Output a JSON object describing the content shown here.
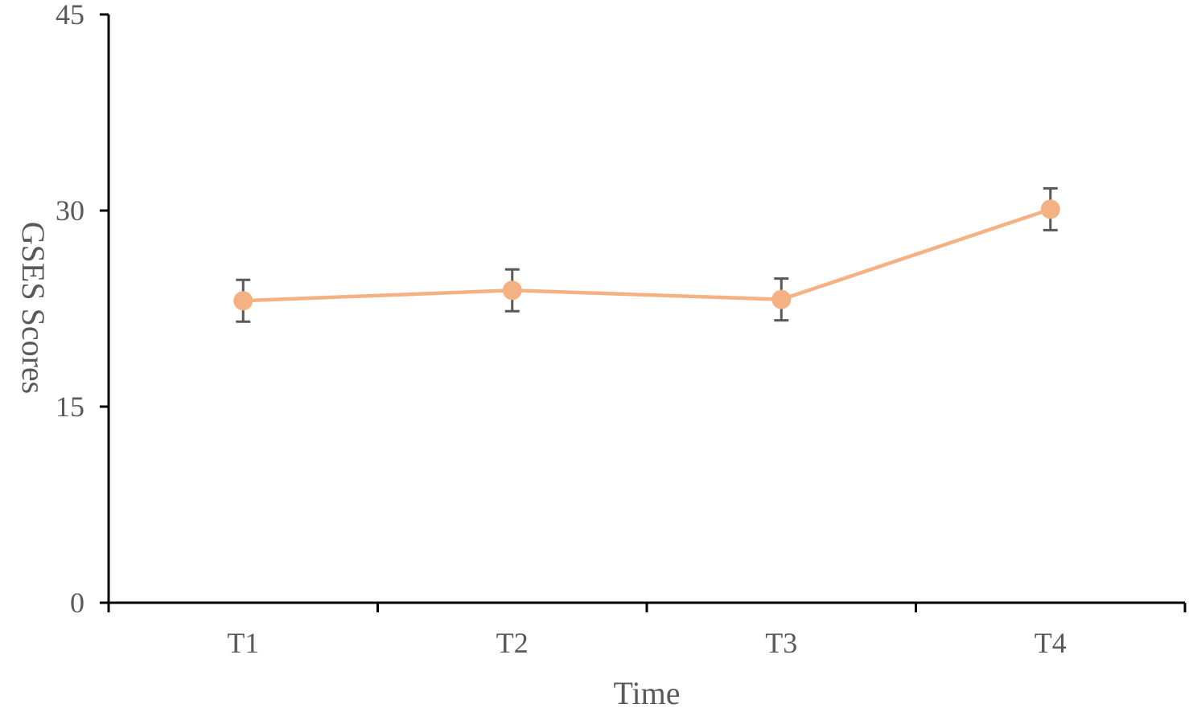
{
  "chart_data": {
    "type": "line",
    "title": "",
    "xlabel": "Time",
    "ylabel": "GSES Scores",
    "categories": [
      "T1",
      "T2",
      "T3",
      "T4"
    ],
    "ylim": [
      0,
      45
    ],
    "yticks": [
      "0",
      "15",
      "30",
      "45"
    ],
    "grid": false,
    "legend": "none",
    "series": [
      {
        "values": [
          23.1,
          23.9,
          23.2,
          30.1
        ],
        "error": [
          1.6,
          1.6,
          1.6,
          1.6
        ],
        "color": "#F4B183"
      }
    ],
    "axis_color": "#000000",
    "errorbar_color": "#595959"
  }
}
